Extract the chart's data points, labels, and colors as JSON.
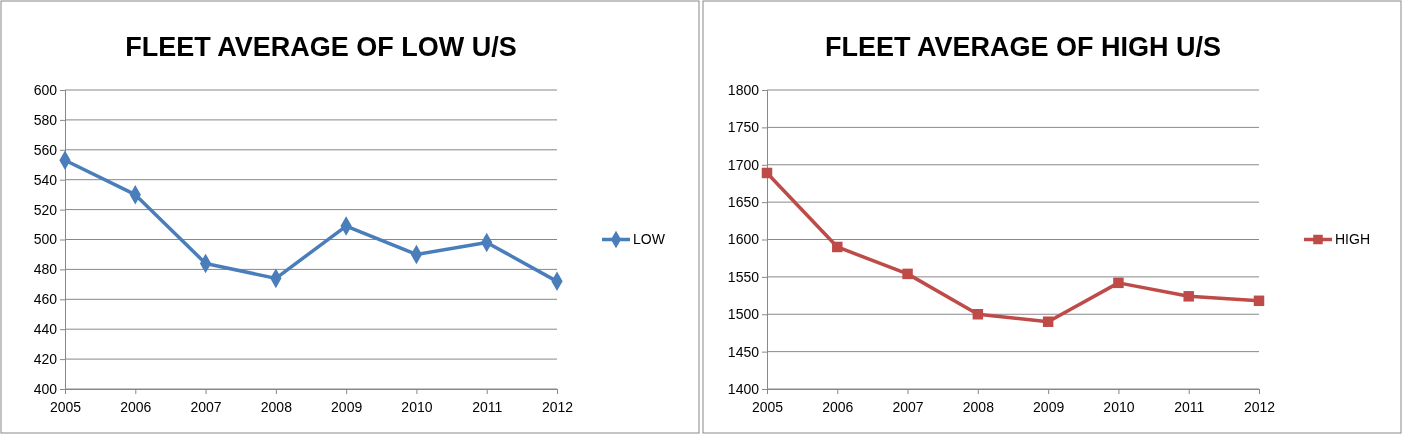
{
  "chart_data": [
    {
      "type": "line",
      "title": "FLEET AVERAGE OF LOW U/S",
      "categories": [
        "2005",
        "2006",
        "2007",
        "2008",
        "2009",
        "2010",
        "2011",
        "2012"
      ],
      "series": [
        {
          "name": "LOW",
          "color": "#4a7ebb",
          "values": [
            553,
            530,
            484,
            474,
            509,
            490,
            498,
            472
          ]
        }
      ],
      "ylim": [
        400,
        600
      ],
      "yticks": [
        400,
        420,
        440,
        460,
        480,
        500,
        520,
        540,
        560,
        580,
        600
      ],
      "grid": "y",
      "legend": "right",
      "marker": "diamond",
      "line_style": "solid"
    },
    {
      "type": "line",
      "title": "FLEET AVERAGE OF HIGH U/S",
      "categories": [
        "2005",
        "2006",
        "2007",
        "2008",
        "2009",
        "2010",
        "2011",
        "2012"
      ],
      "series": [
        {
          "name": "HIGH",
          "color": "#be4b48",
          "values": [
            1689,
            1590,
            1554,
            1500,
            1490,
            1542,
            1524,
            1518
          ]
        }
      ],
      "ylim": [
        1400,
        1800
      ],
      "yticks": [
        1400,
        1450,
        1500,
        1550,
        1600,
        1650,
        1700,
        1750,
        1800
      ],
      "grid": "y",
      "legend": "right",
      "marker": "square",
      "line_style": "solid"
    }
  ]
}
